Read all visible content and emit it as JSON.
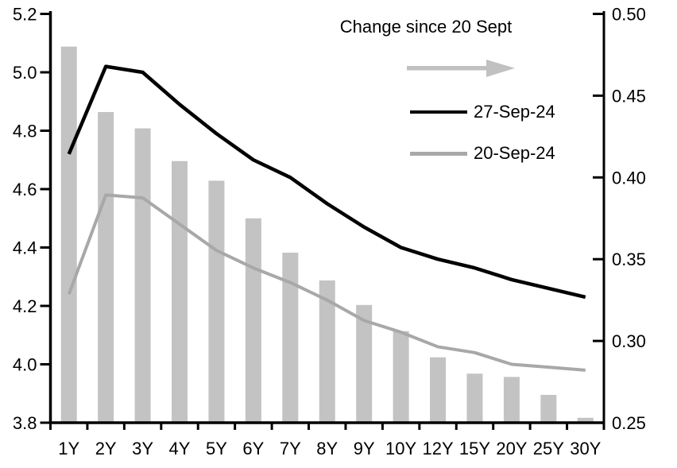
{
  "chart_data": {
    "type": "combo-bar-line",
    "title": "",
    "categories": [
      "1Y",
      "2Y",
      "3Y",
      "4Y",
      "5Y",
      "6Y",
      "7Y",
      "8Y",
      "9Y",
      "10Y",
      "12Y",
      "15Y",
      "20Y",
      "25Y",
      "30Y"
    ],
    "series": [
      {
        "name": "Change since 20 Sept",
        "type": "bar",
        "axis": "right",
        "color": "#c3c3c3",
        "values": [
          0.48,
          0.44,
          0.43,
          0.41,
          0.398,
          0.375,
          0.354,
          0.337,
          0.322,
          0.306,
          0.29,
          0.28,
          0.278,
          0.267,
          0.253
        ]
      },
      {
        "name": "27-Sep-24",
        "type": "line",
        "axis": "left",
        "color": "#000000",
        "values": [
          4.72,
          5.02,
          5.0,
          4.89,
          4.79,
          4.7,
          4.64,
          4.55,
          4.47,
          4.4,
          4.36,
          4.33,
          4.29,
          4.26,
          4.23
        ]
      },
      {
        "name": "20-Sep-24",
        "type": "line",
        "axis": "left",
        "color": "#a8a8a8",
        "values": [
          4.24,
          4.58,
          4.57,
          4.48,
          4.39,
          4.33,
          4.28,
          4.22,
          4.15,
          4.11,
          4.06,
          4.04,
          4.0,
          3.99,
          3.98
        ]
      }
    ],
    "axis_left": {
      "min": 3.8,
      "max": 5.2,
      "tick_values": [
        5.2,
        5.0,
        4.8,
        4.6,
        4.4,
        4.2,
        4.0,
        3.8
      ],
      "tick_labels": [
        "5.2",
        "5.0",
        "4.8",
        "4.6",
        "4.4",
        "4.2",
        "4.0",
        "3.8"
      ]
    },
    "axis_right": {
      "min": 0.25,
      "max": 0.5,
      "tick_values": [
        0.5,
        0.45,
        0.4,
        0.35,
        0.3,
        0.25
      ],
      "tick_labels": [
        "0.50",
        "0.45",
        "0.40",
        "0.35",
        "0.30",
        "0.25"
      ]
    },
    "legend": {
      "title": "Change since 20 Sept",
      "arrow_color": "#c1c1c1",
      "items": [
        {
          "label": "27-Sep-24",
          "color": "#000000"
        },
        {
          "label": "20-Sep-24",
          "color": "#a8a8a8"
        }
      ]
    },
    "grid": "off",
    "legend_position": "top-right-inside",
    "background": "#ffffff",
    "axis_color": "#000000"
  }
}
